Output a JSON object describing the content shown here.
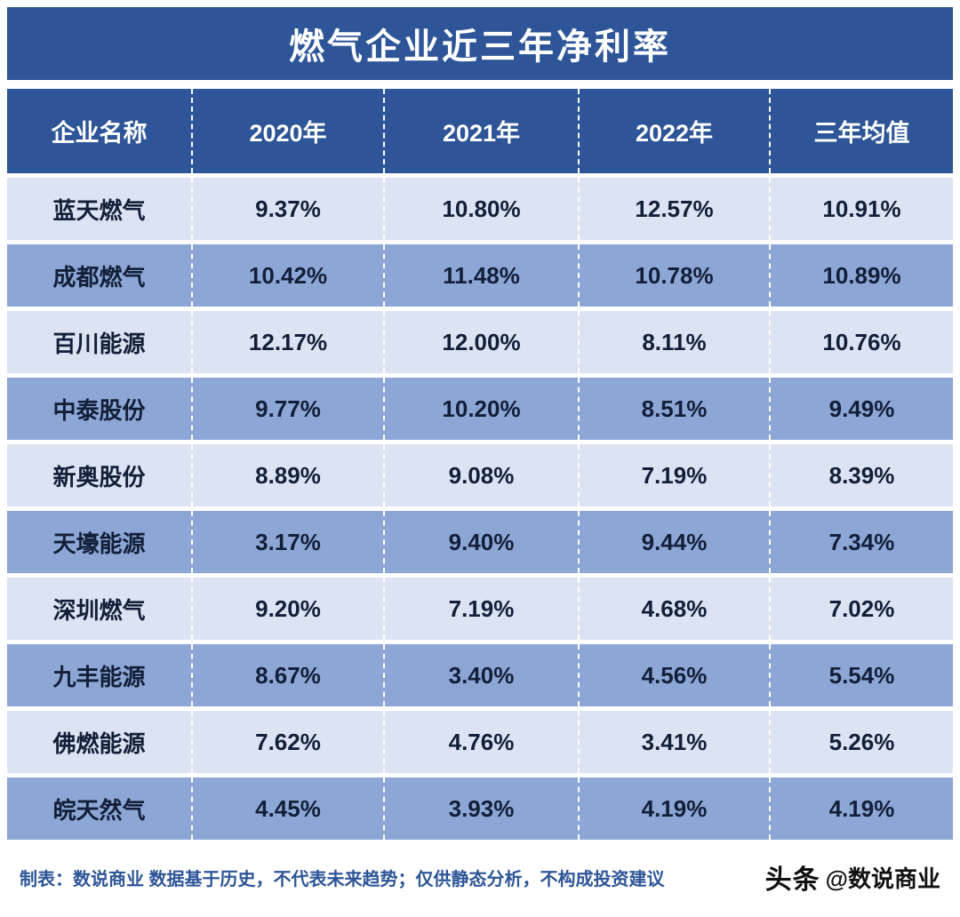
{
  "title": "燃气企业近三年净利率",
  "colors": {
    "header_bg": "#2d5597",
    "row_light": "#dce3f3",
    "row_medium": "#8ca7d6",
    "text_dark": "#131f38",
    "footer_text": "#2d5597"
  },
  "chart_data": {
    "type": "table",
    "title": "燃气企业近三年净利率",
    "columns": [
      "企业名称",
      "2020年",
      "2021年",
      "2022年",
      "三年均值"
    ],
    "rows": [
      [
        "蓝天燃气",
        "9.37%",
        "10.80%",
        "12.57%",
        "10.91%"
      ],
      [
        "成都燃气",
        "10.42%",
        "11.48%",
        "10.78%",
        "10.89%"
      ],
      [
        "百川能源",
        "12.17%",
        "12.00%",
        "8.11%",
        "10.76%"
      ],
      [
        "中泰股份",
        "9.77%",
        "10.20%",
        "8.51%",
        "9.49%"
      ],
      [
        "新奥股份",
        "8.89%",
        "9.08%",
        "7.19%",
        "8.39%"
      ],
      [
        "天壕能源",
        "3.17%",
        "9.40%",
        "9.44%",
        "7.34%"
      ],
      [
        "深圳燃气",
        "9.20%",
        "7.19%",
        "4.68%",
        "7.02%"
      ],
      [
        "九丰能源",
        "8.67%",
        "3.40%",
        "4.56%",
        "5.54%"
      ],
      [
        "佛燃能源",
        "7.62%",
        "4.76%",
        "3.41%",
        "5.26%"
      ],
      [
        "皖天然气",
        "4.45%",
        "3.93%",
        "4.19%",
        "4.19%"
      ]
    ]
  },
  "footer": {
    "disclaimer": "制表：数说商业 数据基于历史，不代表未来趋势；仅供静态分析，不构成投资建议",
    "brand": "头条",
    "handle": "@数说商业"
  }
}
